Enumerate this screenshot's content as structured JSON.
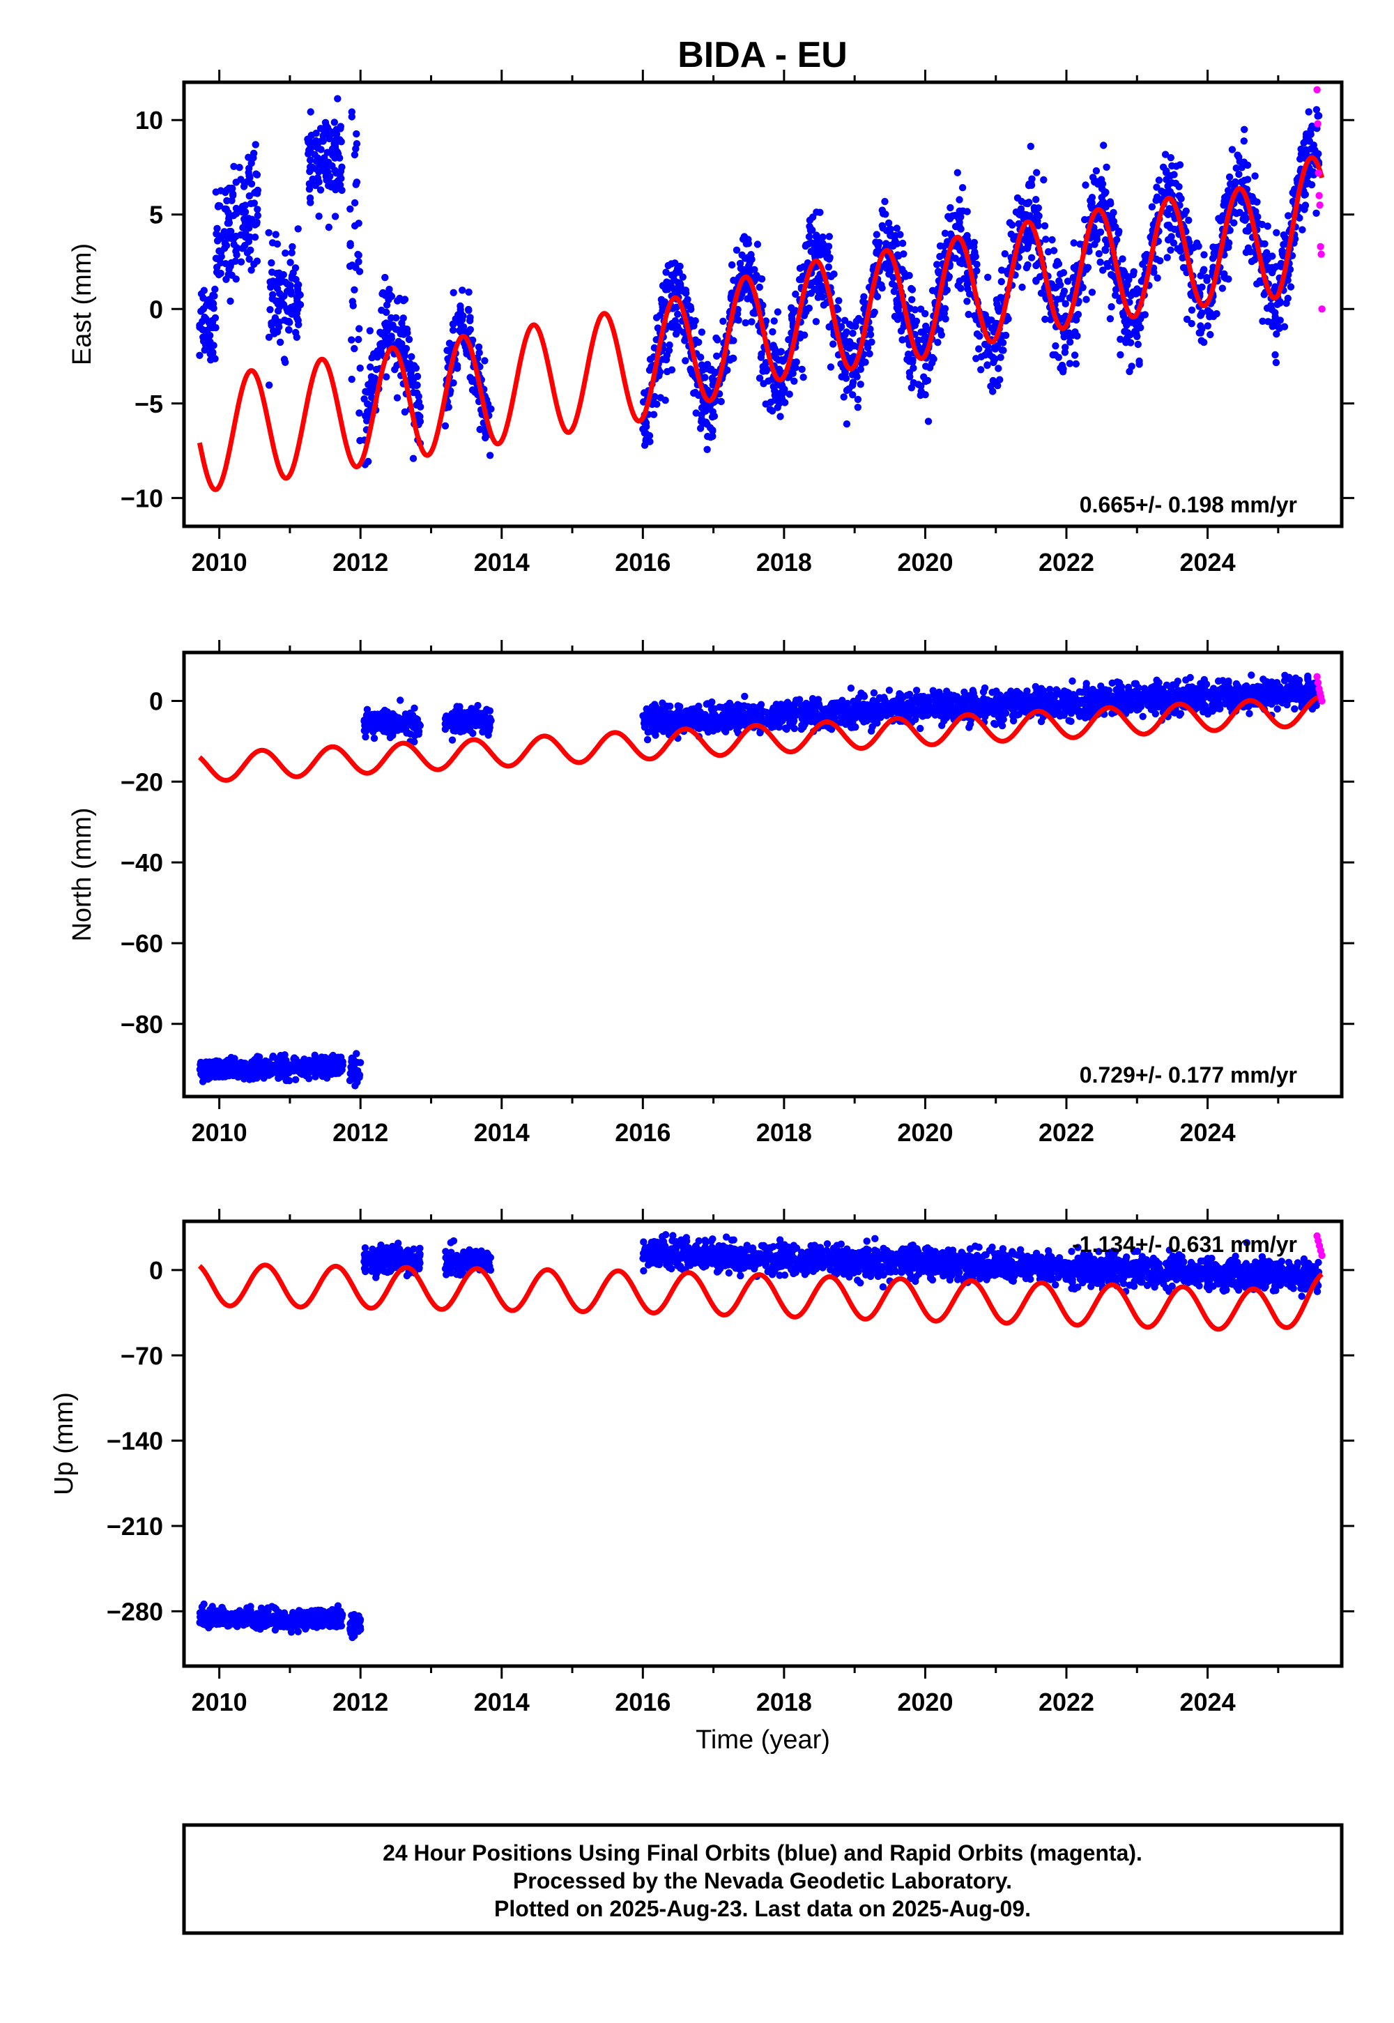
{
  "title": "BIDA - EU",
  "colors": {
    "final": "#0000ff",
    "rapid": "#ff00ff",
    "model": "#ff0000",
    "frame": "#000000"
  },
  "chart_data": [
    {
      "type": "scatter",
      "ylabel": "East (mm)",
      "xlabel": "",
      "xlim": [
        2009.5,
        2025.9
      ],
      "ylim": [
        -11.5,
        12
      ],
      "xticks": [
        2010,
        2012,
        2014,
        2016,
        2018,
        2020,
        2022,
        2024
      ],
      "yticks": [
        -10,
        -5,
        0,
        5,
        10
      ],
      "ytick_labels": [
        "−10",
        "−5",
        "0",
        "5",
        "10"
      ],
      "rate_text": "0.665+/- 0.198 mm/yr",
      "rate_position": "bottom-right",
      "observations": {
        "segments": [
          {
            "t": [
              2009.72,
              2009.95
            ],
            "offset": -0.5,
            "trend_per_year": 0,
            "noise": 1.2
          },
          {
            "t": [
              2009.95,
              2010.55
            ],
            "offset": 3.0,
            "trend_per_year": 5,
            "noise": 1.5
          },
          {
            "t": [
              2010.7,
              2011.15
            ],
            "offset": 0.5,
            "trend_per_year": 0,
            "noise": 1.3
          },
          {
            "t": [
              2011.25,
              2011.75
            ],
            "offset": 7.8,
            "trend_per_year": 0,
            "noise": 1.2
          },
          {
            "t": [
              2011.85,
              2012.0
            ],
            "offset": 2.0,
            "trend_per_year": 0,
            "noise": 3.5
          },
          {
            "t": [
              2012.05,
              2012.85
            ],
            "offset": 1.3,
            "trend_per_year": 0,
            "noise": 1.3,
            "follow_model": true
          },
          {
            "t": [
              2013.2,
              2013.85
            ],
            "offset": 0.2,
            "trend_per_year": 0,
            "noise": 1.0,
            "follow_model": true
          },
          {
            "t": [
              2016.0,
              2025.58
            ],
            "offset": 0,
            "trend_per_year": 0,
            "noise": 1.3,
            "follow_model": true
          }
        ],
        "rapid": {
          "t": [
            2025.55,
            2025.62
          ],
          "values": [
            11.6,
            9.8,
            7.2,
            6.0,
            5.5,
            3.3,
            2.9,
            0.0
          ]
        }
      },
      "model": {
        "t_start": 2009.72,
        "t_end": 2025.62,
        "anchors": [
          [
            2009.72,
            -6.7
          ],
          [
            2016.0,
            -2.9
          ],
          [
            2018.0,
            -0.7
          ],
          [
            2020.0,
            0.4
          ],
          [
            2021.0,
            1.3
          ],
          [
            2022.0,
            2.0
          ],
          [
            2023.0,
            2.6
          ],
          [
            2024.0,
            3.2
          ],
          [
            2025.0,
            3.6
          ],
          [
            2025.62,
            5.5
          ]
        ],
        "amplitude": 3.0,
        "phase_peak": 0.45
      }
    },
    {
      "type": "scatter",
      "ylabel": "North (mm)",
      "xlabel": "",
      "xlim": [
        2009.5,
        2025.9
      ],
      "ylim": [
        -98,
        12
      ],
      "xticks": [
        2010,
        2012,
        2014,
        2016,
        2018,
        2020,
        2022,
        2024
      ],
      "yticks": [
        -80,
        -60,
        -40,
        -20,
        0
      ],
      "ytick_labels": [
        "−80",
        "−60",
        "−40",
        "−20",
        "0"
      ],
      "rate_text": "0.729+/- 0.177 mm/yr",
      "rate_position": "bottom-right",
      "observations": {
        "segments": [
          {
            "t": [
              2009.72,
              2011.75
            ],
            "offset": -91.5,
            "trend_per_year": 0.5,
            "noise": 1.3
          },
          {
            "t": [
              2011.85,
              2012.0
            ],
            "offset": -91.0,
            "trend_per_year": 0,
            "noise": 2.5
          },
          {
            "t": [
              2012.05,
              2012.85
            ],
            "offset": -5.5,
            "trend_per_year": 0,
            "noise": 1.5
          },
          {
            "t": [
              2013.2,
              2013.85
            ],
            "offset": -5.0,
            "trend_per_year": 0,
            "noise": 1.5
          },
          {
            "t": [
              2016.0,
              2025.58
            ],
            "offset": -5.0,
            "trend_per_year": 0.75,
            "noise": 1.8
          }
        ],
        "rapid": {
          "t": [
            2025.55,
            2025.62
          ],
          "values": [
            6.0,
            4.5,
            3.0,
            2.0,
            1.0,
            0.0
          ]
        }
      },
      "model": {
        "t_start": 2009.72,
        "t_end": 2025.62,
        "anchors": [
          [
            2009.72,
            -16.5
          ],
          [
            2025.62,
            -2.5
          ]
        ],
        "amplitude": 3.5,
        "phase_peak": 0.6
      }
    },
    {
      "type": "scatter",
      "ylabel": "Up (mm)",
      "xlabel": "Time (year)",
      "xlim": [
        2009.5,
        2025.9
      ],
      "ylim": [
        -325,
        40
      ],
      "xticks": [
        2010,
        2012,
        2014,
        2016,
        2018,
        2020,
        2022,
        2024
      ],
      "yticks": [
        -280,
        -210,
        -140,
        -70,
        0
      ],
      "ytick_labels": [
        "−280",
        "−210",
        "−140",
        "−70",
        "0"
      ],
      "rate_text": "-1.134+/- 0.631 mm/yr",
      "rate_position": "top-right",
      "observations": {
        "segments": [
          {
            "t": [
              2009.72,
              2011.75
            ],
            "offset": -286,
            "trend_per_year": 0,
            "noise": 4
          },
          {
            "t": [
              2011.85,
              2012.0
            ],
            "offset": -292,
            "trend_per_year": 0,
            "noise": 5
          },
          {
            "t": [
              2012.05,
              2012.85
            ],
            "offset": 8,
            "trend_per_year": 0,
            "noise": 5
          },
          {
            "t": [
              2013.2,
              2013.85
            ],
            "offset": 6,
            "trend_per_year": 0,
            "noise": 5
          },
          {
            "t": [
              2016.0,
              2025.58
            ],
            "offset": 13,
            "trend_per_year": -1.9,
            "noise": 6
          }
        ],
        "rapid": {
          "t": [
            2025.55,
            2025.62
          ],
          "values": [
            28,
            24,
            20,
            16,
            12
          ]
        }
      },
      "model": {
        "t_start": 2009.72,
        "t_end": 2025.62,
        "anchors": [
          [
            2009.72,
            -12
          ],
          [
            2016.0,
            -18
          ],
          [
            2025.0,
            -33
          ],
          [
            2025.62,
            -20
          ]
        ],
        "amplitude": 17,
        "phase_peak": 0.65
      }
    }
  ],
  "footer": {
    "line1": "24 Hour Positions Using Final Orbits (blue) and Rapid Orbits (magenta).",
    "line2": "Processed by the Nevada Geodetic Laboratory.",
    "line3": "Plotted on 2025-Aug-23. Last data on 2025-Aug-09."
  }
}
